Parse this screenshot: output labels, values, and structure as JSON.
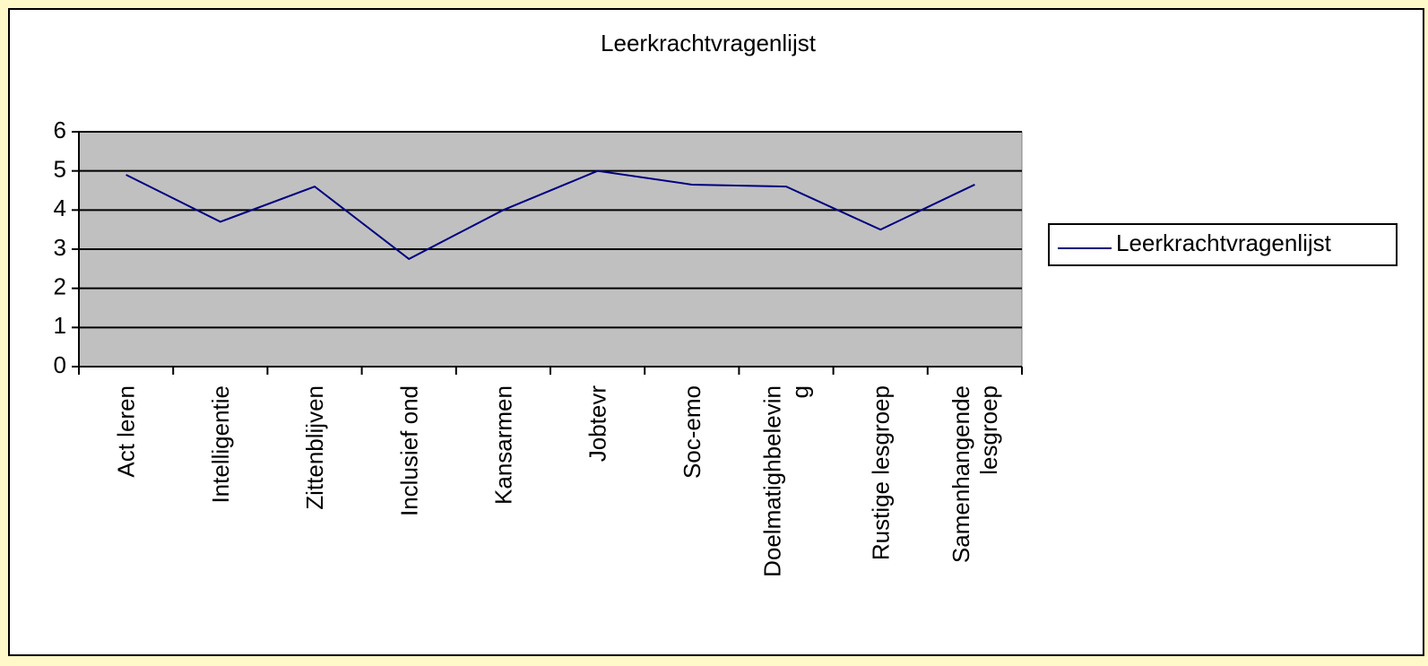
{
  "chart_data": {
    "type": "line",
    "title": "Leerkrachtvragenlijst",
    "categories": [
      "Act leren",
      "Intelligentie",
      "Zittenblijven",
      "Inclusief ond",
      "Kansarmen",
      "Jobtevr",
      "Soc-emo",
      "Doelmatighbelevin\ng",
      "Rustige lesgroep",
      "Samenhangende\nlesgroep"
    ],
    "series": [
      {
        "name": "Leerkrachtvragenlijst",
        "color": "#000080",
        "values": [
          4.9,
          3.7,
          4.6,
          2.75,
          4.0,
          5.0,
          4.65,
          4.6,
          3.5,
          4.65
        ]
      }
    ],
    "ylim": [
      0,
      6
    ],
    "yticks": [
      0,
      1,
      2,
      3,
      4,
      5,
      6
    ],
    "grid": true,
    "legend": "right",
    "plot_background": "#c0c0c0"
  }
}
